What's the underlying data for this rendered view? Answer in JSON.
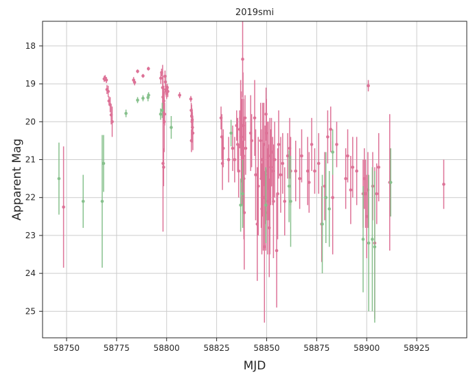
{
  "chart_data": {
    "type": "scatter",
    "title": "2019smi",
    "xlabel": "MJD",
    "ylabel": "Apparent Mag",
    "xlim": [
      58738,
      58950
    ],
    "ylim": [
      25.7,
      17.35
    ],
    "y_inverted": true,
    "grid": true,
    "x_ticks": [
      58750,
      58775,
      58800,
      58825,
      58850,
      58875,
      58900,
      58925
    ],
    "y_ticks": [
      18,
      19,
      20,
      21,
      22,
      23,
      24,
      25
    ],
    "series": [
      {
        "color": "#dd7297",
        "points": [
          [
            58748.5,
            22.25,
            1.6
          ],
          [
            58768.8,
            18.87,
            0.08
          ],
          [
            58769.3,
            18.85,
            0.08
          ],
          [
            58769.9,
            18.9,
            0.08
          ],
          [
            58770.2,
            19.15,
            0.12
          ],
          [
            58770.8,
            19.2,
            0.15
          ],
          [
            58771.2,
            19.45,
            0.12
          ],
          [
            58771.8,
            19.55,
            0.2
          ],
          [
            58772.3,
            19.82,
            0.25
          ],
          [
            58772.8,
            20.0,
            0.4
          ],
          [
            58783.5,
            18.9,
            0.08
          ],
          [
            58784.0,
            18.96,
            0.08
          ],
          [
            58785.5,
            18.67,
            0.05
          ],
          [
            58788.2,
            18.79,
            0.05
          ],
          [
            58790.9,
            18.6,
            0.05
          ],
          [
            58797.1,
            18.85,
            0.15
          ],
          [
            58797.5,
            18.7,
            0.1
          ],
          [
            58798.0,
            19.1,
            0.6
          ],
          [
            58798.2,
            19.35,
            0.55
          ],
          [
            58798.4,
            19.55,
            0.5
          ],
          [
            58798.6,
            19.45,
            0.4
          ],
          [
            58798.8,
            20.0,
            0.8
          ],
          [
            58799.0,
            19.8,
            0.3
          ],
          [
            58798.2,
            21.1,
            1.8
          ],
          [
            58798.5,
            21.2,
            0.5
          ],
          [
            58799.2,
            18.8,
            0.15
          ],
          [
            58799.4,
            18.95,
            0.15
          ],
          [
            58799.6,
            19.15,
            0.15
          ],
          [
            58799.8,
            19.2,
            0.15
          ],
          [
            58800.0,
            19.25,
            0.15
          ],
          [
            58800.3,
            19.1,
            0.1
          ],
          [
            58800.6,
            19.2,
            0.15
          ],
          [
            58806.5,
            19.3,
            0.08
          ],
          [
            58812.1,
            19.4,
            0.08
          ],
          [
            58812.3,
            19.7,
            0.2
          ],
          [
            58812.5,
            19.85,
            0.3
          ],
          [
            58812.7,
            20.0,
            0.35
          ],
          [
            58812.9,
            20.15,
            0.4
          ],
          [
            58813.1,
            20.3,
            0.45
          ],
          [
            58812.4,
            20.5,
            0.3
          ],
          [
            58812.8,
            19.95,
            0.25
          ],
          [
            58827.2,
            19.9,
            0.3
          ],
          [
            58827.6,
            20.4,
            0.6
          ],
          [
            58827.9,
            21.1,
            0.7
          ],
          [
            58828.3,
            20.7,
            0.5
          ],
          [
            58831.0,
            21.0,
            0.6
          ],
          [
            58833.0,
            20.7,
            0.6
          ],
          [
            58834.0,
            21.0,
            0.6
          ],
          [
            58835.0,
            20.1,
            0.4
          ],
          [
            58835.5,
            20.6,
            0.7
          ],
          [
            58836.0,
            21.3,
            0.7
          ],
          [
            58836.5,
            20.2,
            0.5
          ],
          [
            58837.0,
            19.9,
            1.0
          ],
          [
            58837.3,
            20.4,
            1.2
          ],
          [
            58837.6,
            20.8,
            1.4
          ],
          [
            58837.9,
            21.3,
            0.8
          ],
          [
            58838.0,
            18.35,
            1.0
          ],
          [
            58838.2,
            20.1,
            1.4
          ],
          [
            58838.4,
            20.9,
            1.5
          ],
          [
            58838.6,
            21.5,
            1.6
          ],
          [
            58838.8,
            22.4,
            1.5
          ],
          [
            58839.2,
            19.9,
            0.6
          ],
          [
            58839.5,
            20.7,
            0.7
          ],
          [
            58842.0,
            20.3,
            1.0
          ],
          [
            58842.5,
            20.5,
            0.7
          ],
          [
            58844.0,
            19.9,
            1.0
          ],
          [
            58844.5,
            21.4,
            1.2
          ],
          [
            58845.3,
            22.7,
            1.5
          ],
          [
            58845.8,
            21.7,
            1.3
          ],
          [
            58847.0,
            20.5,
            1.0
          ],
          [
            58847.3,
            21.5,
            1.3
          ],
          [
            58847.6,
            22.3,
            1.2
          ],
          [
            58848.0,
            21.0,
            1.5
          ],
          [
            58848.3,
            22.0,
            1.4
          ],
          [
            58848.6,
            20.6,
            1.1
          ],
          [
            58848.9,
            23.3,
            2.0
          ],
          [
            58849.2,
            21.4,
            1.3
          ],
          [
            58849.5,
            22.4,
            1.0
          ],
          [
            58849.7,
            19.8,
            0.7
          ],
          [
            58849.9,
            20.3,
            0.9
          ],
          [
            58850.2,
            21.3,
            1.3
          ],
          [
            58850.5,
            22.1,
            1.4
          ],
          [
            58850.8,
            20.9,
            0.9
          ],
          [
            58851.0,
            21.6,
            1.0
          ],
          [
            58851.3,
            22.8,
            1.3
          ],
          [
            58851.6,
            21.7,
            1.8
          ],
          [
            58852.0,
            21.2,
            1.0
          ],
          [
            58852.4,
            20.8,
            0.9
          ],
          [
            58853.0,
            21.3,
            0.9
          ],
          [
            58853.4,
            22.1,
            1.5
          ],
          [
            58854.0,
            21.0,
            1.0
          ],
          [
            58855.0,
            23.4,
            1.5
          ],
          [
            58855.5,
            21.9,
            1.2
          ],
          [
            58856.0,
            20.6,
            0.9
          ],
          [
            58857.0,
            21.4,
            1.0
          ],
          [
            58858.0,
            21.1,
            0.8
          ],
          [
            58859.0,
            22.1,
            0.9
          ],
          [
            58860.5,
            20.9,
            0.6
          ],
          [
            58861.5,
            20.7,
            0.8
          ],
          [
            58862.0,
            21.3,
            0.9
          ],
          [
            58864.5,
            21.3,
            0.8
          ],
          [
            58866.5,
            21.5,
            0.8
          ],
          [
            58867.5,
            20.9,
            0.7
          ],
          [
            58870.5,
            21.3,
            0.9
          ],
          [
            58871.2,
            21.6,
            0.8
          ],
          [
            58872.5,
            20.6,
            0.7
          ],
          [
            58874.0,
            21.3,
            0.6
          ],
          [
            58876.0,
            21.1,
            0.8
          ],
          [
            58877.5,
            22.7,
            1.0
          ],
          [
            58879.0,
            21.7,
            0.9
          ],
          [
            58880.5,
            20.4,
            0.7
          ],
          [
            58882.0,
            20.2,
            0.6
          ],
          [
            58883.0,
            22.0,
            1.5
          ],
          [
            58885.0,
            20.6,
            0.6
          ],
          [
            58889.5,
            21.5,
            0.8
          ],
          [
            58890.5,
            20.9,
            0.7
          ],
          [
            58892.0,
            21.8,
            0.9
          ],
          [
            58893.0,
            21.2,
            0.8
          ],
          [
            58895.0,
            21.3,
            0.9
          ],
          [
            58898.2,
            21.9,
            0.9
          ],
          [
            58898.8,
            21.5,
            0.8
          ],
          [
            58899.4,
            21.9,
            0.9
          ],
          [
            58900.0,
            22.5,
            1.1
          ],
          [
            58900.6,
            21.8,
            1.0
          ],
          [
            58900.8,
            19.05,
            0.15
          ],
          [
            58903.0,
            21.7,
            0.9
          ],
          [
            58904.0,
            23.2,
            2.0
          ],
          [
            58905.0,
            21.9,
            0.8
          ],
          [
            58906.0,
            21.2,
            0.9
          ],
          [
            58911.5,
            21.6,
            1.8
          ],
          [
            58938.5,
            21.65,
            0.65
          ]
        ]
      },
      {
        "color": "#87c18d",
        "points": [
          [
            58746.2,
            21.5,
            0.95
          ],
          [
            58758.3,
            22.1,
            0.7
          ],
          [
            58767.8,
            22.1,
            1.75
          ],
          [
            58768.5,
            21.1,
            0.75
          ],
          [
            58779.7,
            19.78,
            0.1
          ],
          [
            58785.5,
            19.43,
            0.08
          ],
          [
            58788.2,
            19.38,
            0.08
          ],
          [
            58790.7,
            19.36,
            0.1
          ],
          [
            58791.0,
            19.3,
            0.08
          ],
          [
            58797.0,
            19.8,
            0.15
          ],
          [
            58797.8,
            19.7,
            0.2
          ],
          [
            58802.3,
            20.15,
            0.3
          ],
          [
            58832.2,
            20.3,
            0.35
          ],
          [
            58837.0,
            22.2,
            0.7
          ],
          [
            58838.0,
            21.9,
            0.9
          ],
          [
            58849.6,
            22.2,
            1.0
          ],
          [
            58861.2,
            21.7,
            0.95
          ],
          [
            58862.0,
            22.1,
            1.2
          ],
          [
            58877.8,
            22.7,
            1.3
          ],
          [
            58879.6,
            22.0,
            1.2
          ],
          [
            58881.3,
            22.3,
            1.0
          ],
          [
            58883.0,
            20.8,
            0.6
          ],
          [
            58898.2,
            23.1,
            1.4
          ],
          [
            58901.0,
            23.2,
            1.8
          ],
          [
            58902.8,
            23.1,
            1.9
          ],
          [
            58904.0,
            23.3,
            2.0
          ],
          [
            58912.0,
            21.6,
            0.9
          ]
        ]
      }
    ]
  }
}
